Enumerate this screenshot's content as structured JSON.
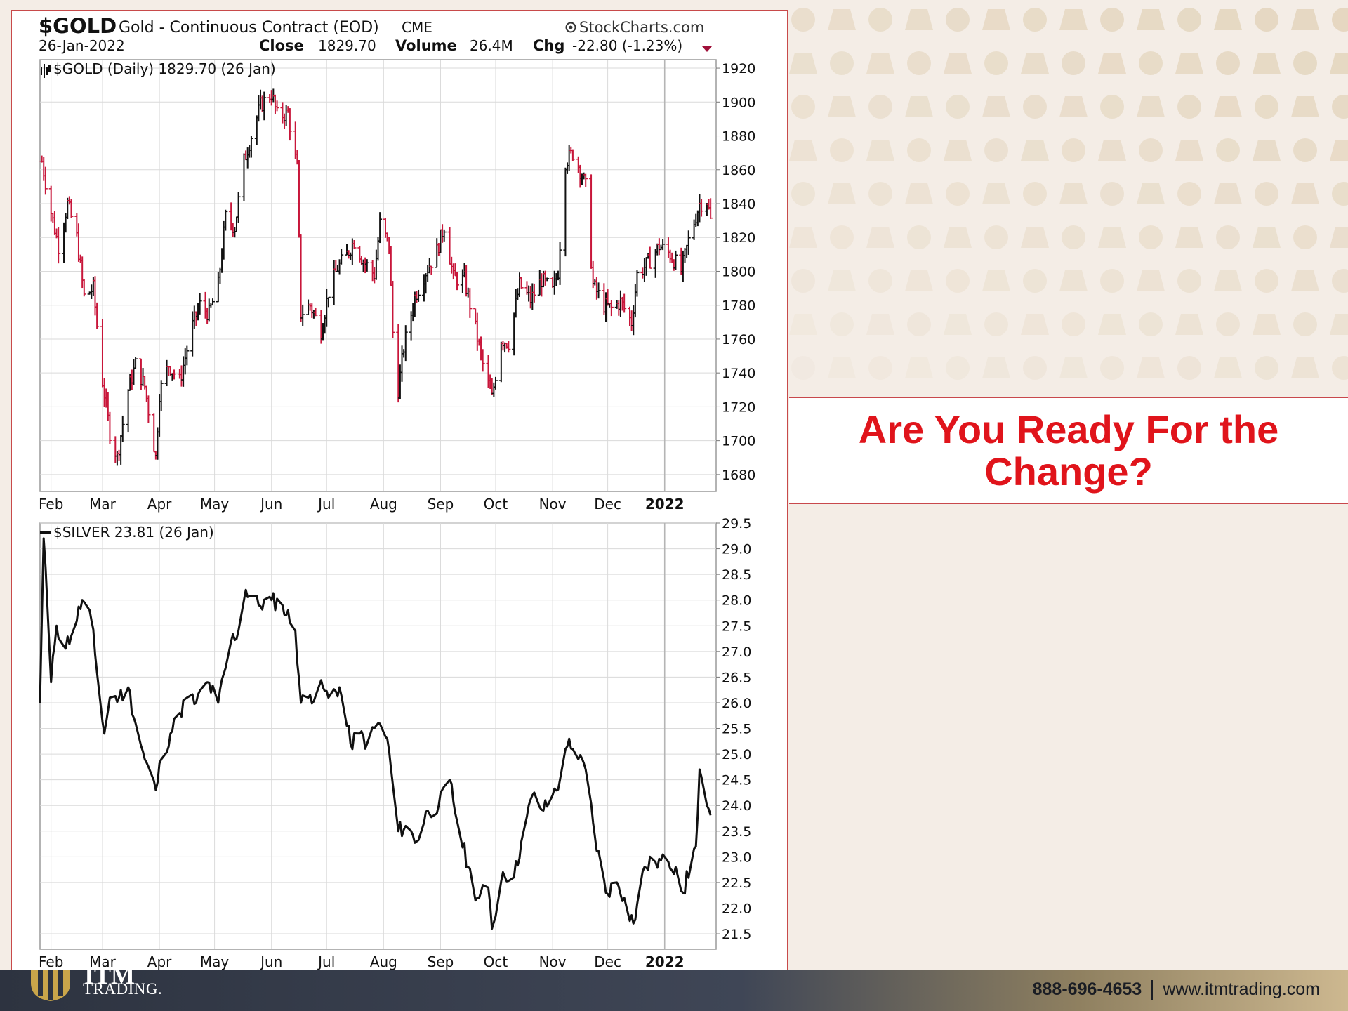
{
  "header": {
    "symbol": "$GOLD",
    "name": "Gold - Continuous Contract (EOD)",
    "exchange": "CME",
    "source": "StockCharts.com",
    "date": "26-Jan-2022",
    "close_label": "Close",
    "close_value": "1829.70",
    "volume_label": "Volume",
    "volume_value": "26.4M",
    "chg_label": "Chg",
    "chg_value": "-22.80 (-1.23%)"
  },
  "headline": "Are You Ready For the Change?",
  "footer": {
    "logo_top": "ITM",
    "logo_bottom": "TRADING.",
    "phone": "888-696-4653",
    "website": "www.itmtrading.com"
  },
  "colors": {
    "up_bar": "#111111",
    "down_bar": "#c8163a",
    "headline": "#e0141b",
    "panel_border": "#c84a4a"
  },
  "chart_data": [
    {
      "type": "ohlc",
      "legend": "$GOLD (Daily) 1829.70 (26 Jan)",
      "ylim": [
        1670,
        1925
      ],
      "yticks": [
        1680,
        1700,
        1720,
        1740,
        1760,
        1780,
        1800,
        1820,
        1840,
        1860,
        1880,
        1900,
        1920
      ],
      "xticks": [
        "Feb",
        "Mar",
        "Apr",
        "May",
        "Jun",
        "Jul",
        "Aug",
        "Sep",
        "Oct",
        "Nov",
        "Dec",
        "2022"
      ],
      "series": [
        {
          "x": [
            "2021-01-27",
            "2021-02-01",
            "2021-02-05",
            "2021-02-10",
            "2021-02-15",
            "2021-02-19",
            "2021-02-24",
            "2021-03-01",
            "2021-03-05",
            "2021-03-09",
            "2021-03-15",
            "2021-03-19",
            "2021-03-24",
            "2021-03-30",
            "2021-04-01",
            "2021-04-06",
            "2021-04-12",
            "2021-04-19",
            "2021-04-23",
            "2021-04-28",
            "2021-05-03",
            "2021-05-07",
            "2021-05-12",
            "2021-05-17",
            "2021-05-21",
            "2021-05-26",
            "2021-06-01",
            "2021-06-04",
            "2021-06-10",
            "2021-06-15",
            "2021-06-17",
            "2021-06-22",
            "2021-06-28",
            "2021-07-02",
            "2021-07-07",
            "2021-07-12",
            "2021-07-16",
            "2021-07-21",
            "2021-07-27",
            "2021-07-30",
            "2021-08-04",
            "2021-08-06",
            "2021-08-09",
            "2021-08-12",
            "2021-08-18",
            "2021-08-24",
            "2021-08-30",
            "2021-09-03",
            "2021-09-08",
            "2021-09-14",
            "2021-09-20",
            "2021-09-24",
            "2021-09-29",
            "2021-10-04",
            "2021-10-08",
            "2021-10-14",
            "2021-10-20",
            "2021-10-26",
            "2021-11-01",
            "2021-11-04",
            "2021-11-08",
            "2021-11-12",
            "2021-11-16",
            "2021-11-19",
            "2021-11-23",
            "2021-11-29",
            "2021-12-03",
            "2021-12-08",
            "2021-12-14",
            "2021-12-17",
            "2021-12-23",
            "2021-12-29",
            "2022-01-04",
            "2022-01-10",
            "2022-01-14",
            "2022-01-20",
            "2022-01-24",
            "2022-01-26"
          ],
          "values": [
            1865,
            1835,
            1815,
            1840,
            1820,
            1785,
            1790,
            1735,
            1705,
            1690,
            1730,
            1745,
            1732,
            1690,
            1728,
            1745,
            1735,
            1768,
            1780,
            1775,
            1792,
            1832,
            1826,
            1865,
            1880,
            1898,
            1905,
            1892,
            1893,
            1860,
            1775,
            1780,
            1765,
            1788,
            1802,
            1810,
            1818,
            1806,
            1798,
            1828,
            1815,
            1764,
            1730,
            1755,
            1785,
            1800,
            1812,
            1827,
            1796,
            1795,
            1766,
            1745,
            1725,
            1760,
            1758,
            1792,
            1783,
            1795,
            1788,
            1800,
            1865,
            1870,
            1860,
            1850,
            1792,
            1780,
            1778,
            1782,
            1770,
            1798,
            1805,
            1815,
            1810,
            1800,
            1818,
            1840,
            1842,
            1830
          ]
        }
      ]
    },
    {
      "type": "line",
      "legend": "$SILVER 23.81 (26 Jan)",
      "ylim": [
        21.2,
        29.5
      ],
      "yticks": [
        21.5,
        22.0,
        22.5,
        23.0,
        23.5,
        24.0,
        24.5,
        25.0,
        25.5,
        26.0,
        26.5,
        27.0,
        27.5,
        28.0,
        28.5,
        29.0,
        29.5
      ],
      "xticks": [
        "Feb",
        "Mar",
        "Apr",
        "May",
        "Jun",
        "Jul",
        "Aug",
        "Sep",
        "Oct",
        "Nov",
        "Dec",
        "2022"
      ],
      "series": [
        {
          "x": [
            "2021-01-26",
            "2021-01-28",
            "2021-02-01",
            "2021-02-02",
            "2021-02-04",
            "2021-02-08",
            "2021-02-12",
            "2021-02-18",
            "2021-02-23",
            "2021-02-26",
            "2021-03-02",
            "2021-03-05",
            "2021-03-10",
            "2021-03-15",
            "2021-03-19",
            "2021-03-24",
            "2021-03-30",
            "2021-04-02",
            "2021-04-07",
            "2021-04-12",
            "2021-04-16",
            "2021-04-21",
            "2021-04-27",
            "2021-05-03",
            "2021-05-10",
            "2021-05-14",
            "2021-05-18",
            "2021-05-25",
            "2021-06-01",
            "2021-06-07",
            "2021-06-14",
            "2021-06-17",
            "2021-06-21",
            "2021-06-29",
            "2021-07-02",
            "2021-07-08",
            "2021-07-14",
            "2021-07-19",
            "2021-07-23",
            "2021-07-29",
            "2021-08-03",
            "2021-08-09",
            "2021-08-13",
            "2021-08-19",
            "2021-08-25",
            "2021-08-31",
            "2021-09-06",
            "2021-09-10",
            "2021-09-16",
            "2021-09-21",
            "2021-09-27",
            "2021-09-29",
            "2021-10-05",
            "2021-10-11",
            "2021-10-15",
            "2021-10-21",
            "2021-10-27",
            "2021-11-01",
            "2021-11-05",
            "2021-11-10",
            "2021-11-15",
            "2021-11-19",
            "2021-11-24",
            "2021-11-30",
            "2021-12-06",
            "2021-12-10",
            "2021-12-15",
            "2021-12-21",
            "2021-12-27",
            "2022-01-03",
            "2022-01-07",
            "2022-01-11",
            "2022-01-18",
            "2022-01-20",
            "2022-01-24",
            "2022-01-26"
          ],
          "values": [
            26.0,
            29.2,
            26.4,
            26.9,
            27.5,
            27.1,
            27.3,
            28.0,
            27.6,
            26.6,
            25.4,
            26.1,
            26.1,
            26.3,
            25.6,
            24.9,
            24.3,
            24.9,
            25.4,
            25.8,
            26.1,
            26.0,
            26.4,
            26.0,
            27.2,
            27.4,
            28.2,
            27.9,
            28.0,
            27.9,
            27.4,
            26.0,
            26.1,
            26.3,
            26.1,
            26.3,
            25.2,
            25.4,
            25.2,
            25.6,
            25.3,
            23.5,
            23.6,
            23.3,
            23.9,
            24.0,
            24.5,
            23.7,
            22.8,
            22.2,
            22.4,
            21.6,
            22.7,
            22.6,
            23.3,
            24.2,
            23.9,
            24.2,
            24.5,
            25.3,
            24.9,
            24.7,
            23.4,
            22.3,
            22.5,
            22.2,
            21.7,
            22.8,
            22.9,
            22.9,
            22.8,
            22.3,
            23.2,
            24.7,
            24.0,
            23.81
          ]
        }
      ]
    }
  ]
}
